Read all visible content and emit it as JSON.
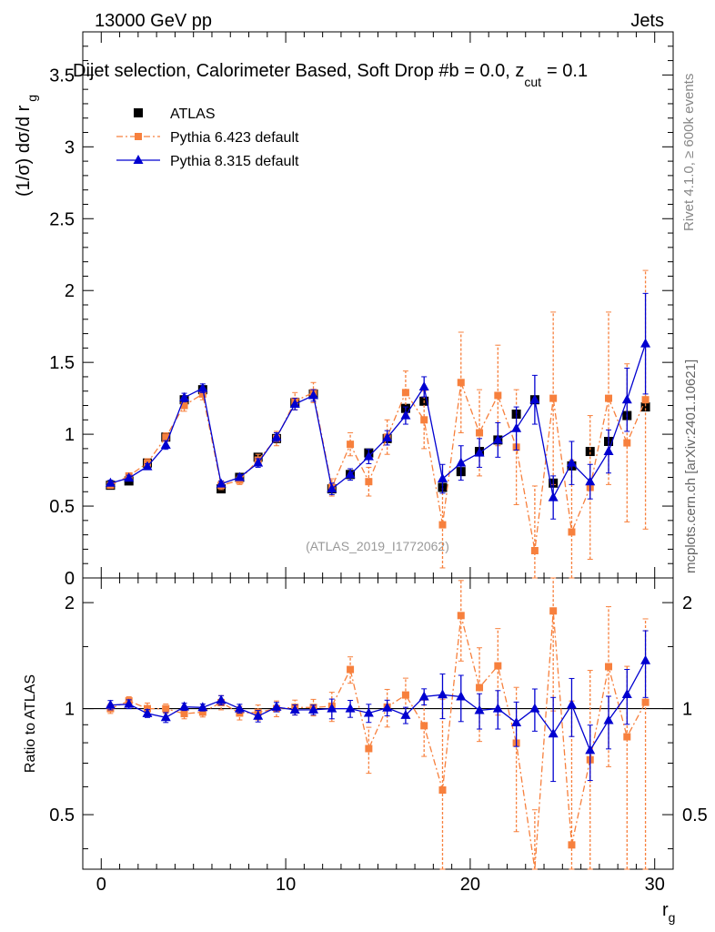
{
  "header": {
    "energy": "13000 GeV pp",
    "category": "Jets"
  },
  "chart_data": {
    "type": "scatter",
    "title": "Dijet selection, Calorimeter Based, Soft Drop #b = 0.0, z",
    "title_suffix": "= 0.1",
    "title_subscript": "cut",
    "ylabel_main": "(1/σ) dσ/d r",
    "ylabel_main_sub": "g",
    "ylabel_ratio": "Ratio to ATLAS",
    "xlabel": "r",
    "xlabel_sub": "g",
    "xlim": [
      -1,
      31
    ],
    "ylim_main": [
      0,
      3.8
    ],
    "ylim_ratio": [
      0.35,
      2.35
    ],
    "x_ticks": [
      "0",
      "10",
      "20",
      "30"
    ],
    "y_ticks_main": [
      "0",
      "0.5",
      "1",
      "1.5",
      "2",
      "2.5",
      "3",
      "3.5"
    ],
    "y_ticks_ratio": [
      "0.5",
      "1",
      "2"
    ],
    "side_label_1": "Rivet 4.1.0, ≥ 600k events",
    "side_label_2": "mcplots.cern.ch [arXiv:2401.10621]",
    "analysis_label": "(ATLAS_2019_I1772062)",
    "legend": [
      {
        "name": "ATLAS",
        "color": "#000000"
      },
      {
        "name": "Pythia 6.423 default",
        "color": "#f7803d"
      },
      {
        "name": "Pythia 8.315 default",
        "color": "#0000d0"
      }
    ],
    "x": [
      0.5,
      1.5,
      2.5,
      3.5,
      4.5,
      5.5,
      6.5,
      7.5,
      8.5,
      9.5,
      10.5,
      11.5,
      12.5,
      13.5,
      14.5,
      15.5,
      16.5,
      17.5,
      18.5,
      19.5,
      20.5,
      21.5,
      22.5,
      23.5,
      24.5,
      25.5,
      26.5,
      27.5,
      28.5,
      29.5
    ],
    "series": [
      {
        "name": "ATLAS",
        "values": [
          0.645,
          0.675,
          0.8,
          0.98,
          1.24,
          1.31,
          0.62,
          0.7,
          0.84,
          0.97,
          1.22,
          1.28,
          0.62,
          0.72,
          0.87,
          0.97,
          1.18,
          1.23,
          0.63,
          0.74,
          0.88,
          0.96,
          1.14,
          1.24,
          0.66,
          0.78,
          0.88,
          0.95,
          1.13,
          1.19
        ],
        "errors": [
          0.01,
          0.01,
          0.01,
          0.015,
          0.015,
          0.02,
          0.01,
          0.01,
          0.01,
          0.015,
          0.02,
          0.02,
          0.01,
          0.02,
          0.02,
          0.02,
          0.025,
          0.03,
          0.02,
          0.02,
          0.02,
          0.03,
          0.03,
          0.03,
          0.02,
          0.02,
          0.03,
          0.03,
          0.03,
          0.03
        ]
      },
      {
        "name": "Pythia 6.423 default",
        "values": [
          0.645,
          0.71,
          0.8,
          0.98,
          1.2,
          1.28,
          0.645,
          0.68,
          0.82,
          0.97,
          1.23,
          1.29,
          0.63,
          0.93,
          0.67,
          0.98,
          1.29,
          1.1,
          0.37,
          1.36,
          1.01,
          1.27,
          0.91,
          0.19,
          1.25,
          0.32,
          0.63,
          1.25,
          0.94,
          1.24
        ],
        "errors": [
          0.02,
          0.02,
          0.03,
          0.03,
          0.04,
          0.04,
          0.03,
          0.03,
          0.04,
          0.05,
          0.06,
          0.07,
          0.06,
          0.08,
          0.1,
          0.12,
          0.15,
          0.2,
          0.3,
          0.35,
          0.3,
          0.35,
          0.4,
          0.45,
          0.6,
          0.5,
          0.5,
          0.6,
          0.55,
          0.9
        ]
      },
      {
        "name": "Pythia 8.315 default",
        "values": [
          0.66,
          0.695,
          0.775,
          0.925,
          1.255,
          1.32,
          0.655,
          0.7,
          0.8,
          0.98,
          1.21,
          1.27,
          0.62,
          0.72,
          0.845,
          0.975,
          1.13,
          1.33,
          0.69,
          0.8,
          0.87,
          0.96,
          1.04,
          1.24,
          0.56,
          0.8,
          0.67,
          0.88,
          1.24,
          1.63
        ],
        "errors": [
          0.02,
          0.02,
          0.02,
          0.03,
          0.03,
          0.03,
          0.02,
          0.02,
          0.03,
          0.03,
          0.04,
          0.04,
          0.04,
          0.04,
          0.05,
          0.05,
          0.06,
          0.07,
          0.1,
          0.12,
          0.1,
          0.12,
          0.15,
          0.17,
          0.15,
          0.15,
          0.12,
          0.15,
          0.22,
          0.35
        ]
      }
    ]
  }
}
